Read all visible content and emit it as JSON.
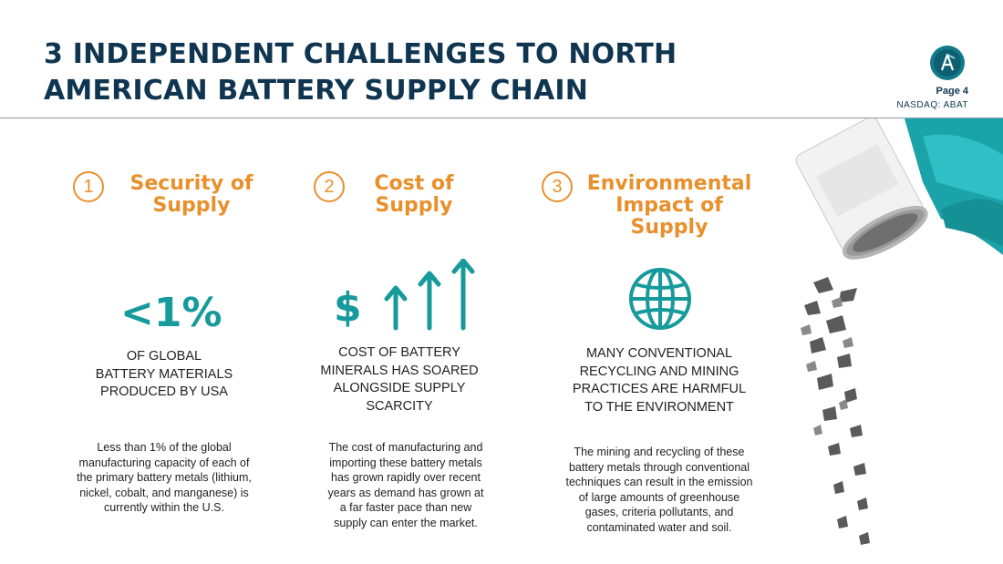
{
  "header": {
    "title_line1": "3 INDEPENDENT CHALLENGES TO NORTH",
    "title_line2": "AMERICAN BATTERY SUPPLY CHAIN",
    "page_label": "Page 4",
    "ticker": "NASDAQ: ABAT",
    "logo_icon": "abat-logo-icon"
  },
  "colors": {
    "title": "#0f3550",
    "accent_orange": "#e8902c",
    "accent_teal": "#169a9c"
  },
  "challenges": [
    {
      "number": "1",
      "heading_line1": "Security of",
      "heading_line2": "Supply",
      "stat": "<1%",
      "caps_line1": "OF GLOBAL",
      "caps_line2": "BATTERY MATERIALS",
      "caps_line3": "PRODUCED BY USA",
      "desc_line1": "Less than 1% of the global",
      "desc_line2": "manufacturing capacity of each of",
      "desc_line3": "the primary battery metals (lithium,",
      "desc_line4": "nickel, cobalt, and manganese) is",
      "desc_line5": "currently within the U.S."
    },
    {
      "number": "2",
      "heading_line1": "Cost of",
      "heading_line2": "Supply",
      "icon": "dollar-rising-arrows-icon",
      "dollar": "$",
      "caps_line1": "COST OF BATTERY",
      "caps_line2": "MINERALS HAS SOARED",
      "caps_line3": "ALONGSIDE SUPPLY",
      "caps_line4": "SCARCITY",
      "desc_line1": "The cost of manufacturing and",
      "desc_line2": "importing these battery metals",
      "desc_line3": "has grown rapidly over recent",
      "desc_line4": "years as demand has grown at",
      "desc_line5": "a far faster pace than new",
      "desc_line6": "supply can enter the market."
    },
    {
      "number": "3",
      "heading_line1": "Environmental",
      "heading_line2": "Impact of",
      "heading_line3": "Supply",
      "icon": "globe-icon",
      "caps_line1": "MANY CONVENTIONAL",
      "caps_line2": "RECYCLING AND MINING",
      "caps_line3": "PRACTICES ARE HARMFUL",
      "caps_line4": "TO THE ENVIRONMENT",
      "desc_line1": "The mining and recycling of these",
      "desc_line2": "battery metals through conventional",
      "desc_line3": "techniques can result in the emission",
      "desc_line4": "of large amounts of greenhouse",
      "desc_line5": "gases, criteria pollutants, and",
      "desc_line6": "contaminated water and soil."
    }
  ]
}
